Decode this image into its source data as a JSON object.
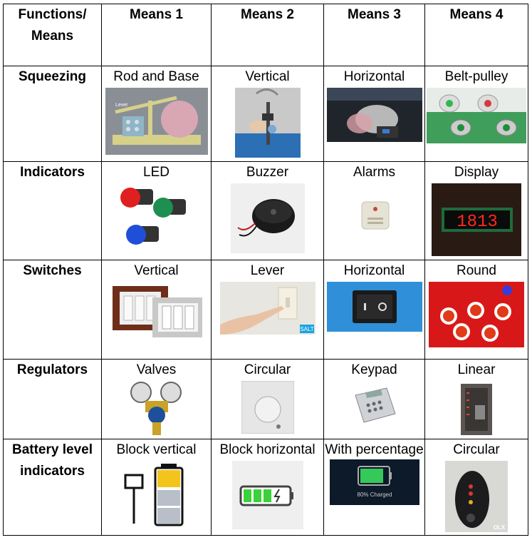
{
  "table": {
    "header": [
      "Functions/ Means",
      "Means 1",
      "Means 2",
      "Means 3",
      "Means 4"
    ],
    "rows": [
      {
        "function": "Squeezing",
        "cells": [
          "Rod and Base",
          "Vertical",
          "Horizontal",
          "Belt-pulley"
        ]
      },
      {
        "function": "Indicators",
        "cells": [
          "LED",
          "Buzzer",
          "Alarms",
          "Display"
        ]
      },
      {
        "function": "Switches",
        "cells": [
          "Vertical",
          "Lever",
          "Horizontal",
          "Round"
        ]
      },
      {
        "function": "Regulators",
        "cells": [
          "Valves",
          "Circular",
          "Keypad",
          "Linear"
        ]
      },
      {
        "function": "Battery level indicators",
        "cells": [
          "Block vertical",
          "Block horizontal",
          "With percentage",
          "Circular"
        ]
      }
    ]
  },
  "image_text": {
    "lever_label": "Lever",
    "display_digits": "1813",
    "salt_logo": "SALT",
    "battery_percentage": "80% Charged",
    "olx_watermark": "OLX"
  }
}
